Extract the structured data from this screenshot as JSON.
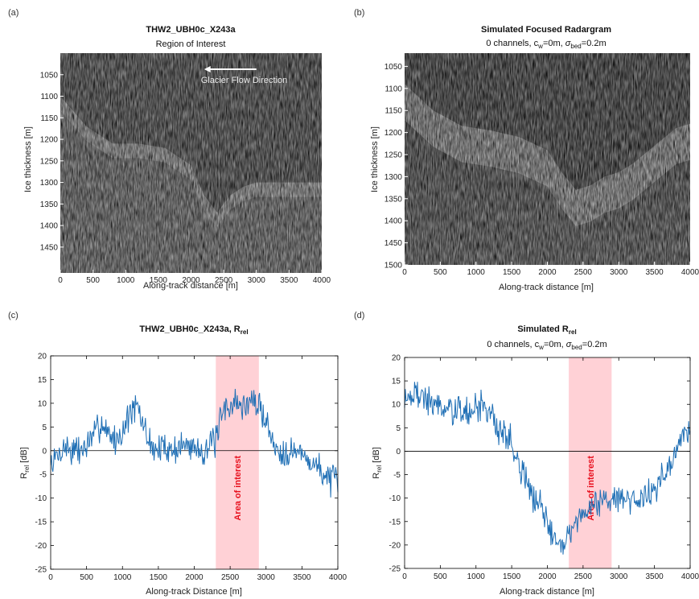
{
  "colors": {
    "line": "#1f6fb5",
    "highlight": "#ffd1d6",
    "highlight_text": "#e8111f",
    "arrow": "#ffffff"
  },
  "chart_data": [
    {
      "panel": "(a)",
      "type": "heatmap",
      "title": "THW2_UBH0c_X243a",
      "subtitle": "Region of Interest",
      "xlabel": "Along-track distance [m]",
      "ylabel": "Ice thickness [m]",
      "xlim": [
        0,
        4000
      ],
      "ylim": [
        1000,
        1510
      ],
      "xticks": [
        0,
        500,
        1000,
        1500,
        2000,
        2500,
        3000,
        3500,
        4000
      ],
      "yticks": [
        1050,
        1100,
        1150,
        1200,
        1250,
        1300,
        1350,
        1400,
        1450
      ],
      "annotation": "Glacier Flow Direction",
      "bed_depth_x": [
        0,
        400,
        800,
        1200,
        1600,
        2000,
        2200,
        2400,
        2600,
        2800,
        3000,
        3200,
        3600,
        4000
      ],
      "bed_depth_y": [
        1100,
        1170,
        1210,
        1210,
        1220,
        1260,
        1330,
        1370,
        1330,
        1310,
        1300,
        1300,
        1300,
        1300
      ]
    },
    {
      "panel": "(b)",
      "type": "heatmap",
      "title": "Simulated Focused Radargram",
      "subtitle_parts": [
        "0 channels, c",
        "w",
        "=0m, ",
        "σ",
        "bed",
        "=0.2m"
      ],
      "xlabel": "Along-track distance [m]",
      "ylabel": "Ice thickness [m]",
      "xlim": [
        0,
        4000
      ],
      "ylim": [
        1020,
        1500
      ],
      "xticks": [
        0,
        500,
        1000,
        1500,
        2000,
        2500,
        3000,
        3500,
        4000
      ],
      "yticks": [
        1050,
        1100,
        1150,
        1200,
        1250,
        1300,
        1350,
        1400,
        1450,
        1500
      ],
      "bed_depth_x": [
        0,
        400,
        800,
        1200,
        1600,
        2000,
        2200,
        2400,
        2600,
        2800,
        3000,
        3200,
        3500,
        3800,
        4000
      ],
      "bed_depth_y": [
        1090,
        1150,
        1185,
        1195,
        1210,
        1240,
        1290,
        1330,
        1320,
        1300,
        1290,
        1270,
        1230,
        1190,
        1180
      ]
    },
    {
      "panel": "(c)",
      "type": "line",
      "title_parts": [
        "THW2_UBH0c_X243a, R",
        "rel"
      ],
      "xlabel": "Along-track Distance [m]",
      "ylabel_parts": [
        "R",
        "rel",
        " [dB]"
      ],
      "xlim": [
        0,
        4000
      ],
      "ylim": [
        -25,
        20
      ],
      "xticks": [
        0,
        500,
        1000,
        1500,
        2000,
        2500,
        3000,
        3500,
        4000
      ],
      "yticks": [
        -25,
        -20,
        -15,
        -10,
        -5,
        0,
        5,
        10,
        15,
        20
      ],
      "zero_line": 0,
      "highlight": {
        "x0": 2300,
        "x1": 2900,
        "label": "Area of interest"
      },
      "series": [
        {
          "x": [
            0,
            100,
            200,
            300,
            400,
            500,
            600,
            700,
            800,
            900,
            1000,
            1100,
            1200,
            1300,
            1400,
            1500,
            1600,
            1700,
            1800,
            1900,
            2000,
            2100,
            2200,
            2300,
            2400,
            2500,
            2600,
            2700,
            2800,
            2900,
            3000,
            3100,
            3200,
            3300,
            3400,
            3500,
            3600,
            3700,
            3800,
            3900,
            4000
          ],
          "y": [
            -3,
            -1,
            1,
            0,
            0,
            1,
            3,
            6,
            4,
            2,
            4,
            8,
            9,
            5,
            1,
            0,
            1,
            0,
            1,
            1,
            1,
            0,
            1,
            2,
            8,
            10,
            10,
            9,
            11,
            9,
            7,
            1,
            0,
            0,
            0,
            -1,
            -2,
            -3,
            -5,
            -6,
            -7
          ]
        }
      ]
    },
    {
      "panel": "(d)",
      "type": "line",
      "title_parts": [
        "Simulated R",
        "rel"
      ],
      "subtitle_parts": [
        "0 channels, c",
        "w",
        "=0m, ",
        "σ",
        "bed",
        "=0.2m"
      ],
      "xlabel": "Along-track distance [m]",
      "ylabel_parts": [
        "R",
        "rel",
        " [dB]"
      ],
      "xlim": [
        0,
        4000
      ],
      "ylim": [
        -25,
        20
      ],
      "xticks": [
        0,
        500,
        1000,
        1500,
        2000,
        2500,
        3000,
        3500,
        4000
      ],
      "yticks": [
        -25,
        -20,
        -15,
        -10,
        -5,
        0,
        5,
        10,
        15,
        20
      ],
      "zero_line": 0,
      "highlight": {
        "x0": 2300,
        "x1": 2900,
        "label": "Area of interest"
      },
      "series": [
        {
          "x": [
            0,
            100,
            200,
            300,
            400,
            500,
            600,
            700,
            800,
            900,
            1000,
            1100,
            1200,
            1300,
            1400,
            1500,
            1600,
            1700,
            1800,
            1900,
            2000,
            2100,
            2200,
            2300,
            2400,
            2500,
            2600,
            2700,
            2800,
            2900,
            3000,
            3100,
            3200,
            3300,
            3400,
            3500,
            3600,
            3700,
            3800,
            3900,
            4000
          ],
          "y": [
            12,
            12,
            12,
            11,
            10,
            10,
            9,
            8,
            9,
            8,
            9,
            10,
            8,
            5,
            4,
            2,
            -3,
            -6,
            -10,
            -12,
            -15,
            -18,
            -19,
            -18,
            -15,
            -13,
            -12,
            -11,
            -10,
            -11,
            -9,
            -10,
            -11,
            -10,
            -9,
            -8,
            -6,
            -5,
            0,
            3,
            5
          ]
        }
      ]
    }
  ]
}
